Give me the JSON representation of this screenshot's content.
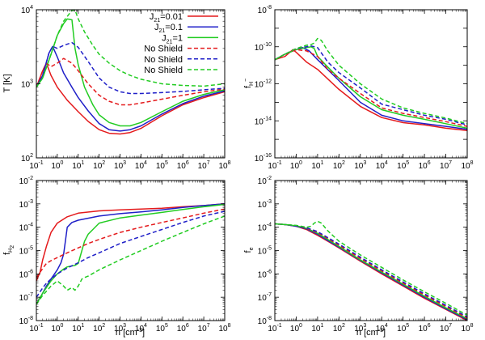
{
  "chart_data": [
    {
      "type": "line",
      "panel": "top-left",
      "xscale": "log",
      "yscale": "log",
      "xlim": [
        0.1,
        100000000
      ],
      "ylim": [
        100,
        10000
      ],
      "xlabel": "",
      "ylabel": "T [K]",
      "legend": {
        "placement": "top-right",
        "entries": [
          {
            "label_base": "J",
            "label_sub": "21",
            "label_rest": "=0.01",
            "color": "#e41a1c",
            "dash": "solid"
          },
          {
            "label_base": "J",
            "label_sub": "21",
            "label_rest": "=0.1",
            "color": "#1f1fc8",
            "dash": "solid"
          },
          {
            "label_base": "J",
            "label_sub": "21",
            "label_rest": "=1",
            "color": "#22cc22",
            "dash": "solid"
          },
          {
            "label": "No Shield",
            "color": "#e41a1c",
            "dash": "dashed"
          },
          {
            "label": "No Shield",
            "color": "#1f1fc8",
            "dash": "dashed"
          },
          {
            "label": "No Shield",
            "color": "#22cc22",
            "dash": "dashed"
          }
        ]
      },
      "series": [
        {
          "color": "#e41a1c",
          "dash": "solid",
          "x": [
            0.1,
            0.2,
            0.3,
            0.5,
            1,
            3,
            10,
            30,
            100,
            300,
            1000,
            3000,
            10000,
            100000,
            1000000,
            10000000,
            100000000
          ],
          "y": [
            900,
            1500,
            1900,
            1300,
            900,
            600,
            420,
            310,
            240,
            215,
            210,
            220,
            250,
            370,
            520,
            650,
            780
          ]
        },
        {
          "color": "#1f1fc8",
          "dash": "solid",
          "x": [
            0.1,
            0.2,
            0.4,
            0.6,
            1,
            2,
            5,
            10,
            30,
            100,
            300,
            1000,
            3000,
            10000,
            100000,
            1000000,
            10000000,
            100000000
          ],
          "y": [
            900,
            1300,
            2600,
            3200,
            2300,
            1400,
            900,
            650,
            430,
            290,
            240,
            230,
            240,
            270,
            390,
            540,
            680,
            800
          ]
        },
        {
          "color": "#22cc22",
          "dash": "solid",
          "x": [
            0.1,
            0.2,
            0.5,
            1,
            2,
            3,
            5,
            7,
            10,
            20,
            50,
            100,
            300,
            1000,
            3000,
            10000,
            100000,
            1000000,
            10000000,
            100000000
          ],
          "y": [
            900,
            1200,
            2500,
            4500,
            6500,
            7500,
            7300,
            3000,
            1800,
            900,
            520,
            380,
            300,
            270,
            270,
            300,
            420,
            580,
            720,
            830
          ]
        },
        {
          "color": "#e41a1c",
          "dash": "dashed",
          "x": [
            0.1,
            0.2,
            0.3,
            0.5,
            1,
            2,
            5,
            10,
            30,
            100,
            300,
            1000,
            3000,
            10000,
            100000,
            1000000,
            10000000,
            100000000
          ],
          "y": [
            900,
            1500,
            1900,
            1700,
            1900,
            2200,
            1900,
            1500,
            1000,
            700,
            580,
            520,
            520,
            550,
            620,
            700,
            780,
            850
          ]
        },
        {
          "color": "#1f1fc8",
          "dash": "dashed",
          "x": [
            0.1,
            0.2,
            0.4,
            0.6,
            1,
            2,
            5,
            10,
            30,
            100,
            300,
            1000,
            3000,
            10000,
            100000,
            1000000,
            10000000,
            100000000
          ],
          "y": [
            900,
            1300,
            2600,
            3200,
            3000,
            3300,
            3600,
            3100,
            2000,
            1200,
            900,
            780,
            740,
            740,
            760,
            790,
            830,
            870
          ]
        },
        {
          "color": "#22cc22",
          "dash": "dashed",
          "x": [
            0.1,
            0.2,
            0.5,
            1,
            2,
            5,
            7,
            10,
            20,
            50,
            100,
            300,
            1000,
            3000,
            10000,
            100000,
            1000000,
            10000000,
            100000000
          ],
          "y": [
            900,
            1200,
            2500,
            4500,
            7000,
            9800,
            9900,
            7500,
            5000,
            3300,
            2500,
            1900,
            1500,
            1300,
            1150,
            1000,
            950,
            930,
            1000
          ]
        }
      ]
    },
    {
      "type": "line",
      "panel": "top-right",
      "xscale": "log",
      "yscale": "log",
      "xlim": [
        0.1,
        100000000
      ],
      "ylim": [
        1e-16,
        1e-08
      ],
      "xlabel": "",
      "ylabel_base": "f",
      "ylabel_sub": "H",
      "ylabel_sup": "−",
      "series": [
        {
          "color": "#e41a1c",
          "dash": "solid",
          "x": [
            0.1,
            0.3,
            0.7,
            1,
            3,
            10,
            100,
            1000,
            10000,
            100000,
            1000000,
            10000000,
            100000000
          ],
          "y": [
            2e-11,
            3e-11,
            7e-11,
            5e-11,
            1.5e-11,
            6e-12,
            5e-13,
            6e-14,
            1.5e-14,
            8e-15,
            6e-15,
            4e-15,
            3e-15
          ]
        },
        {
          "color": "#1f1fc8",
          "dash": "solid",
          "x": [
            0.1,
            0.3,
            1,
            2,
            4,
            10,
            100,
            1000,
            10000,
            100000,
            1000000,
            10000000,
            100000000
          ],
          "y": [
            2e-11,
            4e-11,
            7e-11,
            9e-11,
            6e-11,
            2e-11,
            1.5e-12,
            1e-13,
            2e-14,
            1e-14,
            7e-15,
            5e-15,
            3.5e-15
          ]
        },
        {
          "color": "#22cc22",
          "dash": "solid",
          "x": [
            0.1,
            0.3,
            1,
            3,
            5,
            7,
            10,
            30,
            100,
            1000,
            10000,
            100000,
            1000000,
            10000000,
            100000000
          ],
          "y": [
            2e-11,
            4e-11,
            7e-11,
            9e-11,
            1e-10,
            8e-11,
            3e-11,
            8e-12,
            2e-12,
            2e-13,
            4e-14,
            2e-14,
            1.2e-14,
            7e-15,
            4e-15
          ]
        },
        {
          "color": "#e41a1c",
          "dash": "dashed",
          "x": [
            0.1,
            0.3,
            1,
            3,
            10,
            30,
            100,
            1000,
            10000,
            100000,
            1000000,
            10000000,
            100000000
          ],
          "y": [
            2e-11,
            4e-11,
            7e-11,
            6e-11,
            3e-11,
            6e-12,
            2e-12,
            3e-13,
            5e-14,
            2.5e-14,
            1.5e-14,
            9e-15,
            5e-15
          ]
        },
        {
          "color": "#1f1fc8",
          "dash": "dashed",
          "x": [
            0.1,
            0.3,
            1,
            3,
            5,
            10,
            30,
            100,
            1000,
            10000,
            100000,
            1000000,
            10000000,
            100000000
          ],
          "y": [
            2e-11,
            4e-11,
            8e-11,
            1e-10,
            1.1e-10,
            9e-11,
            1.5e-11,
            4e-12,
            6e-13,
            8e-14,
            4e-14,
            2e-14,
            1.2e-14,
            6e-15
          ]
        },
        {
          "color": "#22cc22",
          "dash": "dashed",
          "x": [
            0.1,
            0.3,
            1,
            3,
            5,
            7,
            10,
            15,
            30,
            100,
            1000,
            10000,
            100000,
            1000000,
            10000000,
            100000000
          ],
          "y": [
            2e-11,
            4e-11,
            8e-11,
            1.2e-10,
            1.3e-10,
            1.6e-10,
            2.8e-10,
            2.2e-10,
            6e-11,
            1e-11,
            1e-12,
            1.5e-13,
            5e-14,
            2.5e-14,
            1.4e-14,
            7e-15
          ]
        }
      ]
    },
    {
      "type": "line",
      "panel": "bottom-left",
      "xscale": "log",
      "yscale": "log",
      "xlim": [
        0.1,
        100000000
      ],
      "ylim": [
        1e-08,
        0.01
      ],
      "xlabel_base": "n [cm",
      "xlabel_sup": "-3",
      "xlabel_rest": "]",
      "ylabel_base": "f",
      "ylabel_sub": "H",
      "ylabel_subsub": "2",
      "series": [
        {
          "color": "#e41a1c",
          "dash": "solid",
          "x": [
            0.1,
            0.15,
            0.2,
            0.3,
            0.5,
            1,
            3,
            10,
            100,
            1000,
            10000,
            100000,
            1000000,
            10000000,
            100000000
          ],
          "y": [
            5e-07,
            1.2e-06,
            4e-06,
            1.5e-05,
            6e-05,
            0.00015,
            0.00028,
            0.0004,
            0.0005,
            0.00055,
            0.0006,
            0.00065,
            0.00075,
            0.00085,
            0.001
          ]
        },
        {
          "color": "#1f1fc8",
          "dash": "solid",
          "x": [
            0.1,
            0.2,
            0.3,
            0.5,
            1,
            1.5,
            2,
            2.5,
            3,
            5,
            10,
            100,
            1000,
            10000,
            100000,
            1000000,
            10000000,
            100000000
          ],
          "y": [
            5e-08,
            1.5e-07,
            3e-07,
            6e-07,
            1.5e-06,
            3e-06,
            7e-06,
            3e-05,
            0.0001,
            0.00016,
            0.0002,
            0.0003,
            0.00038,
            0.00045,
            0.00055,
            0.0007,
            0.00085,
            0.001
          ]
        },
        {
          "color": "#22cc22",
          "dash": "solid",
          "x": [
            0.1,
            0.2,
            0.5,
            1,
            2,
            3,
            5,
            7,
            10,
            15,
            20,
            30,
            50,
            100,
            1000,
            10000,
            100000,
            1000000,
            10000000,
            100000000
          ],
          "y": [
            5e-08,
            1.5e-07,
            5e-07,
            1e-06,
            1.6e-06,
            2e-06,
            2.2e-06,
            2.3e-06,
            2.8e-06,
            1e-05,
            2.5e-05,
            5e-05,
            8e-05,
            0.00015,
            0.00025,
            0.00033,
            0.00043,
            0.00058,
            0.00075,
            0.00095
          ]
        },
        {
          "color": "#e41a1c",
          "dash": "dashed",
          "x": [
            0.1,
            0.2,
            0.3,
            0.5,
            1,
            3,
            10,
            30,
            100,
            1000,
            10000,
            100000,
            1000000,
            10000000,
            100000000
          ],
          "y": [
            7e-07,
            1.7e-06,
            2.8e-06,
            3.7e-06,
            5e-06,
            8e-06,
            1.3e-05,
            2e-05,
            3e-05,
            6e-05,
            0.0001,
            0.00016,
            0.00025,
            0.0004,
            0.0006
          ]
        },
        {
          "color": "#1f1fc8",
          "dash": "dashed",
          "x": [
            0.1,
            0.2,
            0.3,
            0.5,
            1,
            3,
            10,
            30,
            100,
            1000,
            10000,
            100000,
            1000000,
            10000000,
            100000000
          ],
          "y": [
            1e-07,
            2.5e-07,
            4e-07,
            6e-07,
            1e-06,
            1.8e-06,
            3e-06,
            5e-06,
            8e-06,
            2e-05,
            4e-05,
            8e-05,
            0.00016,
            0.0003,
            0.00048
          ]
        },
        {
          "color": "#22cc22",
          "dash": "dashed",
          "x": [
            0.1,
            0.2,
            0.5,
            1,
            2,
            3,
            5,
            7,
            10,
            15,
            20,
            30,
            100,
            1000,
            10000,
            100000,
            1000000,
            10000000,
            100000000
          ],
          "y": [
            5e-08,
            1.2e-07,
            3e-07,
            5e-07,
            3e-07,
            2e-07,
            2.6e-07,
            2e-07,
            3e-07,
            6e-07,
            7e-07,
            8e-07,
            1.5e-06,
            4e-06,
            1e-05,
            2.5e-05,
            6e-05,
            0.00014,
            0.0003
          ]
        }
      ]
    },
    {
      "type": "line",
      "panel": "bottom-right",
      "xscale": "log",
      "yscale": "log",
      "xlim": [
        0.1,
        100000000
      ],
      "ylim": [
        1e-08,
        0.01
      ],
      "xlabel_base": "n [cm",
      "xlabel_sup": "-3",
      "xlabel_rest": "]",
      "ylabel_base": "f",
      "ylabel_sub": "e",
      "series": [
        {
          "color": "#e41a1c",
          "dash": "solid",
          "x": [
            0.1,
            0.3,
            1,
            3,
            10,
            30,
            100,
            1000,
            10000,
            100000,
            1000000,
            10000000,
            100000000
          ],
          "y": [
            0.00014,
            0.00013,
            0.00011,
            8e-05,
            4.5e-05,
            2.5e-05,
            1.3e-05,
            3.5e-06,
            1e-06,
            3e-07,
            9e-08,
            3e-08,
            1e-08
          ]
        },
        {
          "color": "#1f1fc8",
          "dash": "solid",
          "x": [
            0.1,
            0.3,
            1,
            3,
            10,
            30,
            100,
            1000,
            10000,
            100000,
            1000000,
            10000000,
            100000000
          ],
          "y": [
            0.00014,
            0.00013,
            0.00011,
            8.5e-05,
            5e-05,
            2.7e-05,
            1.4e-05,
            3.8e-06,
            1.1e-06,
            3.3e-07,
            1e-07,
            3.2e-08,
            1.1e-08
          ]
        },
        {
          "color": "#22cc22",
          "dash": "solid",
          "x": [
            0.1,
            0.3,
            1,
            3,
            10,
            30,
            100,
            1000,
            10000,
            100000,
            1000000,
            10000000,
            100000000
          ],
          "y": [
            0.00014,
            0.00013,
            0.000115,
            9e-05,
            5.5e-05,
            3e-05,
            1.5e-05,
            4e-06,
            1.2e-06,
            3.6e-07,
            1.1e-07,
            3.5e-08,
            1.2e-08
          ]
        },
        {
          "color": "#e41a1c",
          "dash": "dashed",
          "x": [
            0.1,
            0.3,
            1,
            3,
            10,
            30,
            100,
            1000,
            10000,
            100000,
            1000000,
            10000000,
            100000000
          ],
          "y": [
            0.00014,
            0.00013,
            0.000115,
            9e-05,
            6e-05,
            3.3e-05,
            1.7e-05,
            4.6e-06,
            1.35e-06,
            4e-07,
            1.25e-07,
            4e-08,
            1.3e-08
          ]
        },
        {
          "color": "#1f1fc8",
          "dash": "dashed",
          "x": [
            0.1,
            0.3,
            1,
            3,
            10,
            30,
            100,
            1000,
            10000,
            100000,
            1000000,
            10000000,
            100000000
          ],
          "y": [
            0.00014,
            0.00013,
            0.000115,
            9.5e-05,
            6.5e-05,
            3.6e-05,
            1.9e-05,
            5.2e-06,
            1.5e-06,
            4.5e-07,
            1.4e-07,
            4.5e-08,
            1.45e-08
          ]
        },
        {
          "color": "#22cc22",
          "dash": "dashed",
          "x": [
            0.1,
            0.3,
            1,
            3,
            5,
            7,
            10,
            15,
            30,
            100,
            1000,
            10000,
            100000,
            1000000,
            10000000,
            100000000
          ],
          "y": [
            0.00014,
            0.00013,
            0.00012,
            0.0001,
            0.00011,
            0.00015,
            0.00018,
            0.00015,
            7e-05,
            2.5e-05,
            6.5e-06,
            1.9e-06,
            5.5e-07,
            1.7e-07,
            5.5e-08,
            1.7e-08
          ]
        }
      ]
    }
  ]
}
